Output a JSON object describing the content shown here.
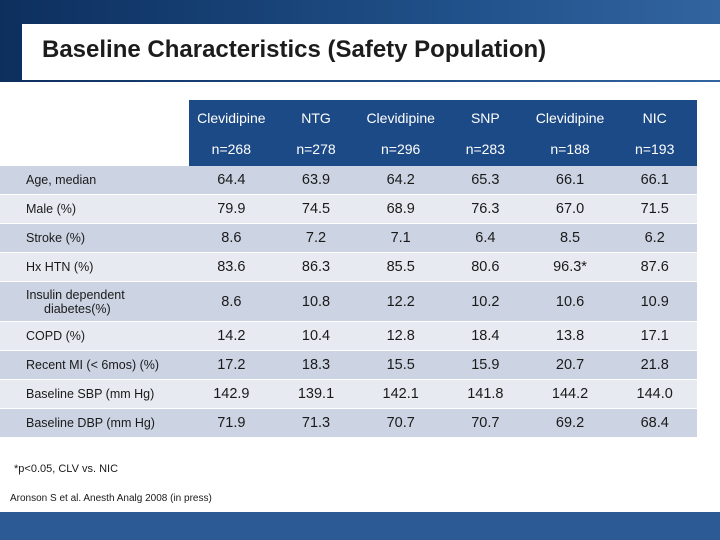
{
  "title": "Baseline Characteristics (Safety Population)",
  "columns": [
    {
      "drug": "Clevidipine",
      "n": "n=268"
    },
    {
      "drug": "NTG",
      "n": "n=278"
    },
    {
      "drug": "Clevidipine",
      "n": "n=296"
    },
    {
      "drug": "SNP",
      "n": "n=283"
    },
    {
      "drug": "Clevidipine",
      "n": "n=188"
    },
    {
      "drug": "NIC",
      "n": "n=193"
    }
  ],
  "rows": [
    {
      "label": "Age, median",
      "label2": "",
      "values": [
        "64.4",
        "63.9",
        "64.2",
        "65.3",
        "66.1",
        "66.1"
      ]
    },
    {
      "label": "Male (%)",
      "label2": "",
      "values": [
        "79.9",
        "74.5",
        "68.9",
        "76.3",
        "67.0",
        "71.5"
      ]
    },
    {
      "label": "Stroke (%)",
      "label2": "",
      "values": [
        "8.6",
        "7.2",
        "7.1",
        "6.4",
        "8.5",
        "6.2"
      ]
    },
    {
      "label": "Hx HTN (%)",
      "label2": "",
      "values": [
        "83.6",
        "86.3",
        "85.5",
        "80.6",
        "96.3*",
        "87.6"
      ]
    },
    {
      "label": "Insulin dependent",
      "label2": "diabetes(%)",
      "values": [
        "8.6",
        "10.8",
        "12.2",
        "10.2",
        "10.6",
        "10.9"
      ]
    },
    {
      "label": "COPD (%)",
      "label2": "",
      "values": [
        "14.2",
        "10.4",
        "12.8",
        "18.4",
        "13.8",
        "17.1"
      ]
    },
    {
      "label": "Recent MI (< 6mos) (%)",
      "label2": "",
      "values": [
        "17.2",
        "18.3",
        "15.5",
        "15.9",
        "20.7",
        "21.8"
      ]
    },
    {
      "label": "Baseline SBP (mm Hg)",
      "label2": "",
      "values": [
        "142.9",
        "139.1",
        "142.1",
        "141.8",
        "144.2",
        "144.0"
      ]
    },
    {
      "label": "Baseline DBP (mm Hg)",
      "label2": "",
      "values": [
        "71.9",
        "71.3",
        "70.7",
        "70.7",
        "69.2",
        "68.4"
      ]
    }
  ],
  "footnote": "*p<0.05, CLV vs. NIC",
  "citation": "Aronson S et al. Anesth Analg 2008 (in press)"
}
